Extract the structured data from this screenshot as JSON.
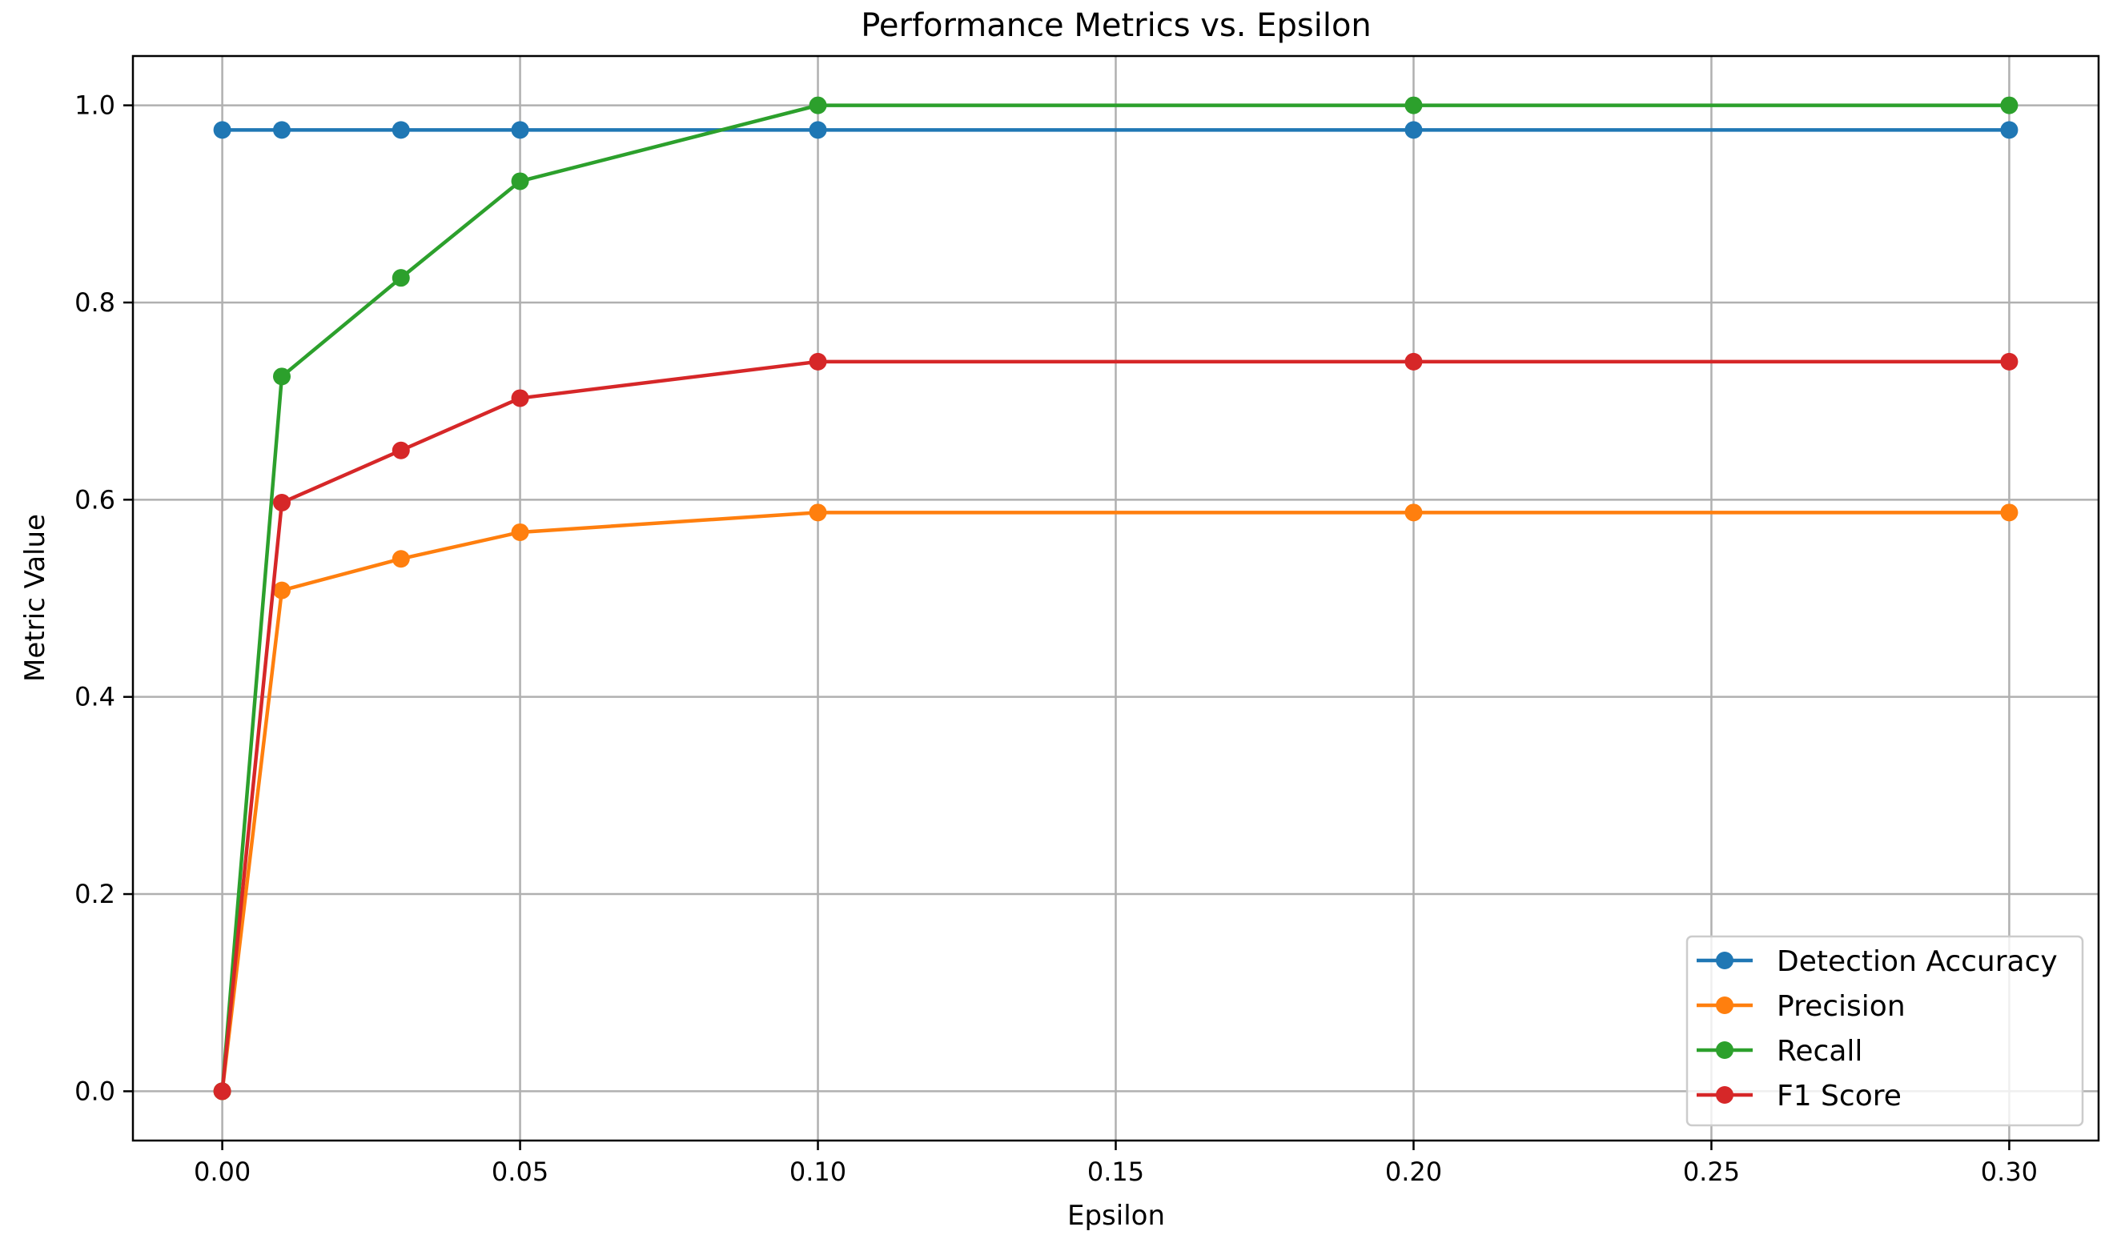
{
  "chart_data": {
    "type": "line",
    "title": "Performance Metrics vs. Epsilon",
    "xlabel": "Epsilon",
    "ylabel": "Metric Value",
    "x": [
      0.0,
      0.01,
      0.03,
      0.05,
      0.1,
      0.2,
      0.3
    ],
    "xlim": [
      -0.015,
      0.315
    ],
    "ylim": [
      -0.05,
      1.05
    ],
    "xticks": [
      0.0,
      0.05,
      0.1,
      0.15,
      0.2,
      0.25,
      0.3
    ],
    "xtick_labels": [
      "0.00",
      "0.05",
      "0.10",
      "0.15",
      "0.20",
      "0.25",
      "0.30"
    ],
    "yticks": [
      0.0,
      0.2,
      0.4,
      0.6,
      0.8,
      1.0
    ],
    "ytick_labels": [
      "0.0",
      "0.2",
      "0.4",
      "0.6",
      "0.8",
      "1.0"
    ],
    "grid": true,
    "legend_position": "lower-right",
    "series": [
      {
        "name": "Detection Accuracy",
        "color": "#1f77b4",
        "values": [
          0.975,
          0.975,
          0.975,
          0.975,
          0.975,
          0.975,
          0.975
        ]
      },
      {
        "name": "Precision",
        "color": "#ff7f0e",
        "values": [
          0.0,
          0.508,
          0.54,
          0.567,
          0.587,
          0.587,
          0.587
        ]
      },
      {
        "name": "Recall",
        "color": "#2ca02c",
        "values": [
          0.0,
          0.725,
          0.825,
          0.923,
          1.0,
          1.0,
          1.0
        ]
      },
      {
        "name": "F1 Score",
        "color": "#d62728",
        "values": [
          0.0,
          0.597,
          0.65,
          0.703,
          0.74,
          0.74,
          0.74
        ]
      }
    ]
  }
}
